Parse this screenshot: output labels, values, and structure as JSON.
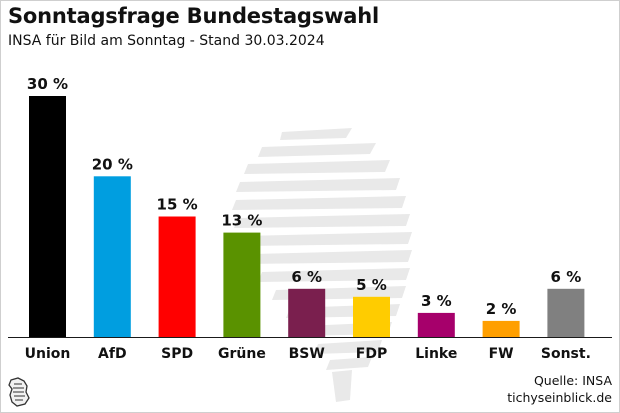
{
  "title": "Sonntagsfrage Bundestagswahl",
  "subtitle": "INSA für Bild am Sonntag - Stand 30.03.2024",
  "source": {
    "line1": "Quelle: INSA",
    "line2": "tichyseinblick.de"
  },
  "chart_data": {
    "type": "bar",
    "title": "Sonntagsfrage Bundestagswahl",
    "subtitle": "INSA für Bild am Sonntag - Stand 30.03.2024",
    "categories": [
      "Union",
      "AfD",
      "SPD",
      "Grüne",
      "BSW",
      "FDP",
      "Linke",
      "FW",
      "Sonst."
    ],
    "values": [
      30,
      20,
      15,
      13,
      6,
      5,
      3,
      2,
      6
    ],
    "value_labels": [
      "30 %",
      "20 %",
      "15 %",
      "13 %",
      "6 %",
      "5 %",
      "3 %",
      "2 %",
      "6 %"
    ],
    "colors": [
      "#000000",
      "#009ee0",
      "#ff0000",
      "#5a9200",
      "#7a1f4e",
      "#ffcc00",
      "#a6006b",
      "#ff9f00",
      "#808080"
    ],
    "ylim": [
      0,
      30
    ],
    "grid": false,
    "legend": "none"
  }
}
